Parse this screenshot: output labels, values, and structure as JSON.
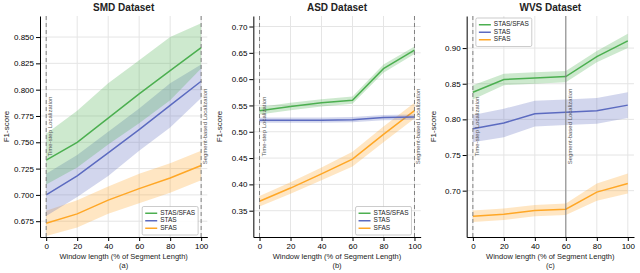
{
  "chart_data": [
    {
      "type": "line",
      "title": "SMD Dataset",
      "subtitle": "(a)",
      "x_label": "Window length (% of Segment Length)",
      "y_label": "F1-score",
      "x": [
        0,
        20,
        40,
        60,
        80,
        100
      ],
      "series": [
        {
          "name": "STAS/SFAS",
          "color": "#4CAF50",
          "values": [
            0.733,
            0.75,
            0.773,
            0.796,
            0.818,
            0.84
          ],
          "upper": [
            0.758,
            0.78,
            0.806,
            0.828,
            0.85,
            0.863
          ],
          "lower": [
            0.71,
            0.726,
            0.748,
            0.768,
            0.79,
            0.82
          ]
        },
        {
          "name": "STAS",
          "color": "#5C6BC0",
          "values": [
            0.7,
            0.718,
            0.74,
            0.762,
            0.785,
            0.808
          ],
          "upper": [
            0.72,
            0.738,
            0.76,
            0.782,
            0.806,
            0.824
          ],
          "lower": [
            0.68,
            0.698,
            0.718,
            0.742,
            0.764,
            0.792
          ]
        },
        {
          "name": "SFAS",
          "color": "#FFA726",
          "values": [
            0.673,
            0.682,
            0.695,
            0.706,
            0.716,
            0.728
          ],
          "upper": [
            0.685,
            0.695,
            0.708,
            0.72,
            0.73,
            0.742
          ],
          "lower": [
            0.661,
            0.669,
            0.682,
            0.692,
            0.702,
            0.714
          ]
        }
      ],
      "annotations": [
        {
          "text": "Time-step Localization",
          "x": 0,
          "line_style": "dashed"
        },
        {
          "text": "Segment-based Localization",
          "x": 100,
          "line_style": "dashed"
        }
      ],
      "xlim": [
        -4,
        104
      ],
      "ylim": [
        0.66,
        0.87
      ],
      "xticks": [
        0,
        20,
        40,
        60,
        80,
        100
      ],
      "yticks": [
        0.675,
        {
          "value": 0.7,
          "label": "0.700"
        },
        0.725,
        {
          "value": 0.75,
          "label": "0.750"
        },
        0.775,
        {
          "value": 0.8,
          "label": "0.800"
        },
        0.825,
        {
          "value": 0.85,
          "label": "0.850"
        }
      ],
      "grid": true,
      "legend": "lower right"
    },
    {
      "type": "line",
      "title": "ASD Dataset",
      "subtitle": "(b)",
      "x_label": "Window length (% of Segment Length)",
      "y_label": "F1-score",
      "x": [
        0,
        20,
        40,
        60,
        80,
        100
      ],
      "series": [
        {
          "name": "STAS/SFAS",
          "color": "#4CAF50",
          "values": [
            0.54,
            0.548,
            0.555,
            0.56,
            0.62,
            0.655
          ],
          "upper": [
            0.547,
            0.555,
            0.562,
            0.567,
            0.628,
            0.662
          ],
          "lower": [
            0.533,
            0.541,
            0.548,
            0.553,
            0.612,
            0.648
          ]
        },
        {
          "name": "STAS",
          "color": "#5C6BC0",
          "values": [
            0.522,
            0.522,
            0.522,
            0.523,
            0.527,
            0.528
          ],
          "upper": [
            0.527,
            0.527,
            0.527,
            0.528,
            0.532,
            0.533
          ],
          "lower": [
            0.517,
            0.517,
            0.517,
            0.518,
            0.522,
            0.523
          ]
        },
        {
          "name": "SFAS",
          "color": "#FFA726",
          "values": [
            0.368,
            0.393,
            0.42,
            0.448,
            0.495,
            0.54
          ],
          "upper": [
            0.378,
            0.404,
            0.432,
            0.462,
            0.51,
            0.555
          ],
          "lower": [
            0.358,
            0.382,
            0.408,
            0.434,
            0.48,
            0.525
          ]
        }
      ],
      "annotations": [
        {
          "text": "Time-step Localization",
          "x": 0,
          "line_style": "dashed"
        },
        {
          "text": "Segment-based Localization",
          "x": 100,
          "line_style": "dashed"
        }
      ],
      "xlim": [
        -4,
        104
      ],
      "ylim": [
        0.3,
        0.72
      ],
      "xticks": [
        0,
        20,
        40,
        60,
        80,
        100
      ],
      "yticks": [
        0.35,
        {
          "value": 0.4,
          "label": "0.40"
        },
        0.45,
        {
          "value": 0.5,
          "label": "0.50"
        },
        0.55,
        {
          "value": 0.6,
          "label": "0.60"
        },
        0.65,
        {
          "value": 0.7,
          "label": "0.70"
        }
      ],
      "grid": true,
      "legend": "lower right"
    },
    {
      "type": "line",
      "title": "WVS Dataset",
      "subtitle": "(c)",
      "x_label": "Window length (% of Segment Length)",
      "y_label": "F1-score",
      "x": [
        0,
        20,
        40,
        60,
        80,
        100
      ],
      "series": [
        {
          "name": "STAS/SFAS",
          "color": "#4CAF50",
          "values": [
            0.838,
            0.856,
            0.858,
            0.86,
            0.888,
            0.91
          ],
          "upper": [
            0.848,
            0.864,
            0.866,
            0.868,
            0.896,
            0.92
          ],
          "lower": [
            0.828,
            0.848,
            0.85,
            0.852,
            0.88,
            0.9
          ]
        },
        {
          "name": "STAS",
          "color": "#5C6BC0",
          "values": [
            0.787,
            0.795,
            0.808,
            0.81,
            0.812,
            0.82
          ],
          "upper": [
            0.806,
            0.815,
            0.826,
            0.828,
            0.83,
            0.838
          ],
          "lower": [
            0.768,
            0.775,
            0.79,
            0.792,
            0.794,
            0.802
          ]
        },
        {
          "name": "SFAS",
          "color": "#FFA726",
          "values": [
            0.664,
            0.667,
            0.672,
            0.674,
            0.698,
            0.71
          ],
          "upper": [
            0.672,
            0.675,
            0.68,
            0.682,
            0.71,
            0.724
          ],
          "lower": [
            0.656,
            0.659,
            0.664,
            0.666,
            0.686,
            0.696
          ]
        }
      ],
      "annotations": [
        {
          "text": "Time-step Localization",
          "x": 0,
          "line_style": "dashed"
        },
        {
          "text": "Segment-based Localization",
          "x": 60,
          "line_style": "solid"
        }
      ],
      "xlim": [
        -4,
        104
      ],
      "ylim": [
        0.635,
        0.945
      ],
      "xticks": [
        0,
        20,
        40,
        60,
        80,
        100
      ],
      "yticks": [
        {
          "value": 0.7,
          "label": "0.70"
        },
        0.75,
        {
          "value": 0.8,
          "label": "0.80"
        },
        0.85,
        {
          "value": 0.9,
          "label": "0.90"
        }
      ],
      "grid": true,
      "legend": "upper left"
    }
  ]
}
